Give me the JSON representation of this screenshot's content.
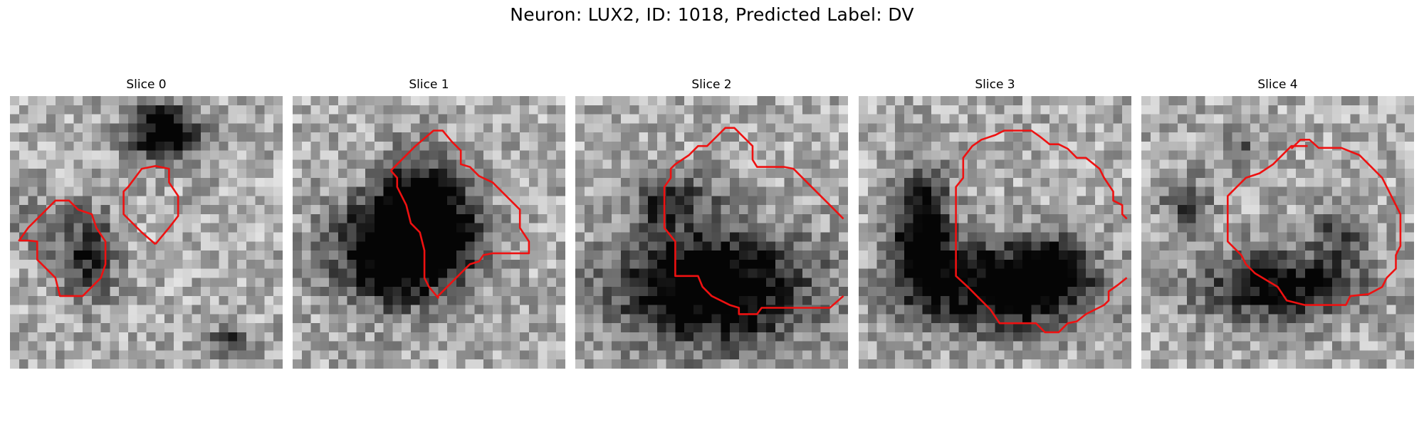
{
  "figure": {
    "title": "Neuron: LUX2, ID: 1018, Predicted Label: DV",
    "contour_color": "#ee1111"
  },
  "panels": [
    {
      "title": "Slice 0",
      "grid": 30,
      "dark_blobs": [
        [
          17,
          4,
          3.5,
          3.0,
          0.85
        ],
        [
          8.5,
          17.5,
          3.0,
          4.5,
          0.55
        ],
        [
          24,
          27,
          2.5,
          1.5,
          0.45
        ],
        [
          3,
          14,
          3,
          3,
          0.2
        ]
      ],
      "contours": [
        [
          [
            2,
            15.9
          ],
          [
            3,
            16
          ],
          [
            3,
            18
          ],
          [
            5,
            20
          ],
          [
            5.5,
            22
          ],
          [
            8,
            22
          ],
          [
            10,
            20
          ],
          [
            10.5,
            18.5
          ],
          [
            10.5,
            16
          ],
          [
            9.5,
            14.5
          ],
          [
            9,
            13
          ],
          [
            7.5,
            12.5
          ],
          [
            6.5,
            11.5
          ],
          [
            5,
            11.5
          ],
          [
            3.5,
            13
          ],
          [
            2,
            14.5
          ],
          [
            1,
            15.9
          ],
          [
            2,
            15.9
          ]
        ],
        [
          [
            16,
            16.3
          ],
          [
            17.5,
            14.5
          ],
          [
            18.5,
            13.2
          ],
          [
            18.5,
            11
          ],
          [
            17.5,
            9.5
          ],
          [
            17.5,
            8
          ],
          [
            16,
            7.7
          ],
          [
            14.5,
            8
          ],
          [
            13,
            10
          ],
          [
            12.5,
            10.5
          ],
          [
            12.5,
            13
          ],
          [
            14.5,
            15
          ],
          [
            16,
            16.3
          ]
        ]
      ]
    },
    {
      "title": "Slice 1",
      "grid": 30,
      "dark_blobs": [
        [
          11.5,
          17,
          6.5,
          5.5,
          0.95
        ],
        [
          14,
          11,
          3.5,
          5,
          0.6
        ],
        [
          16,
          15,
          5,
          4,
          0.5
        ]
      ],
      "contours": [
        [
          [
            10.8,
            8.2
          ],
          [
            12,
            7
          ],
          [
            13.5,
            5.5
          ],
          [
            15.5,
            3.8
          ],
          [
            16.5,
            3.8
          ],
          [
            17.5,
            5
          ],
          [
            18.5,
            6
          ],
          [
            18.5,
            7.5
          ],
          [
            19.5,
            7.8
          ],
          [
            20.5,
            8.8
          ],
          [
            22,
            9.5
          ],
          [
            23,
            10.5
          ],
          [
            25,
            12.5
          ],
          [
            25,
            14.5
          ],
          [
            26,
            16
          ],
          [
            26,
            17
          ],
          [
            26,
            17.3
          ],
          [
            22,
            17.3
          ],
          [
            21,
            17.5
          ],
          [
            20.5,
            18.2
          ],
          [
            19.5,
            18.5
          ],
          [
            18,
            20
          ],
          [
            16,
            22
          ],
          [
            16,
            22.2
          ],
          [
            15,
            21
          ],
          [
            14.5,
            20
          ],
          [
            14.5,
            17
          ],
          [
            14,
            15
          ],
          [
            13,
            14
          ],
          [
            12.5,
            12
          ],
          [
            11.5,
            10
          ],
          [
            11.5,
            9
          ],
          [
            10.8,
            8.2
          ]
        ]
      ]
    },
    {
      "title": "Slice 2",
      "grid": 30,
      "dark_blobs": [
        [
          15,
          21,
          10,
          6,
          0.95
        ],
        [
          9,
          12,
          2.5,
          3,
          0.35
        ],
        [
          13,
          11,
          3,
          2.5,
          0.3
        ]
      ],
      "contours": [
        [
          [
            29.5,
            13.5
          ],
          [
            28,
            12
          ],
          [
            26.5,
            10.5
          ],
          [
            25,
            9
          ],
          [
            24,
            8
          ],
          [
            23,
            7.8
          ],
          [
            20,
            7.8
          ],
          [
            19.5,
            7
          ],
          [
            19.5,
            5.5
          ],
          [
            18.5,
            4.5
          ],
          [
            17.5,
            3.5
          ],
          [
            16.5,
            3.5
          ],
          [
            15.5,
            4.5
          ],
          [
            14.5,
            5.5
          ],
          [
            13.5,
            5.5
          ],
          [
            12.5,
            6.5
          ],
          [
            11,
            7.5
          ],
          [
            10.5,
            8
          ],
          [
            10.5,
            9
          ],
          [
            9.8,
            10
          ],
          [
            9.8,
            14.5
          ],
          [
            11,
            16
          ],
          [
            11,
            19.8
          ],
          [
            13.5,
            19.8
          ],
          [
            14,
            21
          ],
          [
            15,
            22
          ],
          [
            17,
            23
          ],
          [
            18,
            23.3
          ],
          [
            18,
            24
          ],
          [
            20,
            24
          ],
          [
            20.5,
            23.3
          ],
          [
            28,
            23.3
          ],
          [
            29.5,
            22
          ]
        ]
      ]
    },
    {
      "title": "Slice 3",
      "grid": 30,
      "dark_blobs": [
        [
          16,
          21,
          8.5,
          4.5,
          0.9
        ],
        [
          7,
          15,
          3,
          6.5,
          0.8
        ],
        [
          22,
          19,
          3,
          3,
          0.5
        ]
      ],
      "contours": [
        [
          [
            29.5,
            13.5
          ],
          [
            29,
            13
          ],
          [
            29,
            12
          ],
          [
            28,
            11.5
          ],
          [
            28,
            10.5
          ],
          [
            27,
            9
          ],
          [
            26.5,
            8
          ],
          [
            25,
            6.8
          ],
          [
            24,
            6.8
          ],
          [
            23,
            5.8
          ],
          [
            22,
            5.3
          ],
          [
            21,
            5.3
          ],
          [
            20,
            4.5
          ],
          [
            19,
            3.8
          ],
          [
            16,
            3.8
          ],
          [
            15,
            4.3
          ],
          [
            13.5,
            4.8
          ],
          [
            12.5,
            5.5
          ],
          [
            11.5,
            6.8
          ],
          [
            11.5,
            9
          ],
          [
            10.7,
            10
          ],
          [
            10.7,
            19.8
          ],
          [
            12,
            21
          ],
          [
            13,
            22
          ],
          [
            14.5,
            23.5
          ],
          [
            15.5,
            25
          ],
          [
            19.5,
            25
          ],
          [
            20.5,
            26
          ],
          [
            22,
            26
          ],
          [
            23,
            25
          ],
          [
            24,
            24.8
          ],
          [
            25,
            24
          ],
          [
            27,
            23
          ],
          [
            27.5,
            22.5
          ],
          [
            27.5,
            21.5
          ],
          [
            28.5,
            20.8
          ],
          [
            29.5,
            20
          ]
        ]
      ]
    },
    {
      "title": "Slice 4",
      "grid": 30,
      "dark_blobs": [
        [
          15,
          21,
          8,
          3.5,
          0.75
        ],
        [
          5,
          12,
          2.5,
          3,
          0.4
        ],
        [
          22,
          15,
          3,
          3,
          0.4
        ],
        [
          11,
          6,
          2,
          2,
          0.3
        ]
      ],
      "contours": [
        [
          [
            18.3,
            5.5
          ],
          [
            16.5,
            5.5
          ],
          [
            14.5,
            7.5
          ],
          [
            13,
            8.5
          ],
          [
            11.5,
            9
          ],
          [
            9.5,
            11
          ],
          [
            9.5,
            16
          ],
          [
            11,
            17.5
          ],
          [
            11.5,
            18.5
          ],
          [
            12.5,
            19.5
          ],
          [
            15,
            21
          ],
          [
            16,
            22.5
          ],
          [
            18,
            23
          ],
          [
            22.5,
            23
          ],
          [
            23,
            22
          ],
          [
            25,
            21.8
          ],
          [
            26.5,
            21
          ],
          [
            27,
            20
          ],
          [
            28,
            19
          ],
          [
            28,
            17.5
          ],
          [
            28.5,
            16.5
          ],
          [
            28.5,
            13
          ],
          [
            27.5,
            11
          ],
          [
            27,
            10
          ],
          [
            26.5,
            9
          ],
          [
            25,
            7.5
          ],
          [
            24,
            6.5
          ],
          [
            22,
            5.7
          ],
          [
            19.5,
            5.7
          ],
          [
            18.5,
            4.8
          ],
          [
            17.5,
            4.8
          ],
          [
            16.5,
            5.8
          ]
        ]
      ]
    }
  ]
}
